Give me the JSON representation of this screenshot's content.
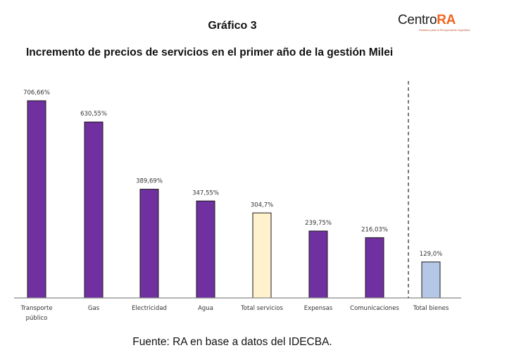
{
  "title": "Gráfico 3",
  "logo": {
    "text_a": "Centro",
    "text_b": "RA",
    "tagline": "Estudios para la Recuperación Argentina"
  },
  "source": "Fuente: RA en base a datos del IDECBA.",
  "chart_data": {
    "type": "bar",
    "title": "Incremento de precios de servicios en el primer año de la gestión Milei",
    "categories": [
      "Transporte público",
      "Gas",
      "Electricidad",
      "Agua",
      "Total servicios",
      "Expensas",
      "Comunicaciones",
      "Total bienes"
    ],
    "values": [
      706.66,
      630.55,
      389.69,
      347.55,
      304.7,
      239.75,
      216.03,
      129.0
    ],
    "labels": [
      "706,66%",
      "630,55%",
      "389,69%",
      "347,55%",
      "304,7%",
      "239,75%",
      "216,03%",
      "129,0%"
    ],
    "colors": [
      "#7030a0",
      "#7030a0",
      "#7030a0",
      "#7030a0",
      "#fff2cc",
      "#7030a0",
      "#7030a0",
      "#b4c7e7"
    ],
    "ylim": [
      0,
      720
    ],
    "grid": false,
    "separator": "dashed vertical line before Total bienes"
  }
}
